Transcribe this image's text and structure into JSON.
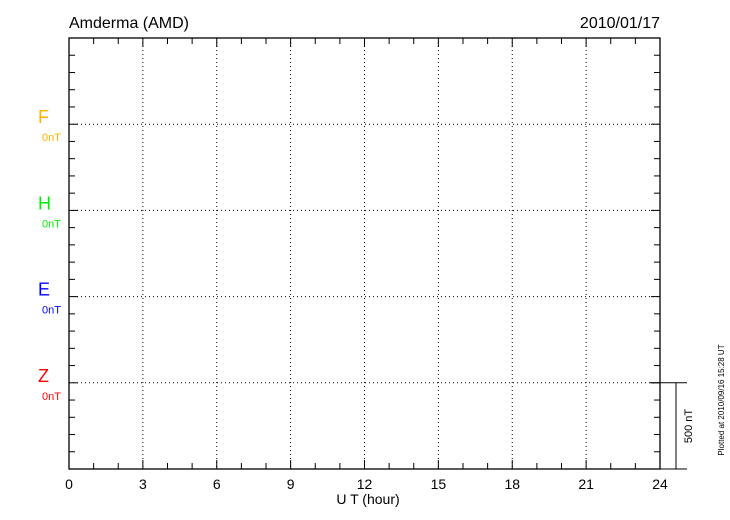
{
  "chart_data": {
    "type": "line",
    "title": "Amderma (AMD)",
    "date": "2010/01/17",
    "xlabel": "U T (hour)",
    "xlim": [
      0,
      24
    ],
    "xticks": [
      "0",
      "3",
      "6",
      "9",
      "12",
      "15",
      "18",
      "21",
      "24"
    ],
    "grid": true,
    "series": [
      {
        "name": "F",
        "baseline": "0nT",
        "color": "#ffb000",
        "values": []
      },
      {
        "name": "H",
        "baseline": "0nT",
        "color": "#00ee00",
        "values": []
      },
      {
        "name": "E",
        "baseline": "0nT",
        "color": "#0000ff",
        "values": []
      },
      {
        "name": "Z",
        "baseline": "0nT",
        "color": "#ff0000",
        "values": []
      }
    ],
    "scale_bar": "500 nT",
    "footer": "Plotted at 2010/09/16 15:28 UT"
  }
}
